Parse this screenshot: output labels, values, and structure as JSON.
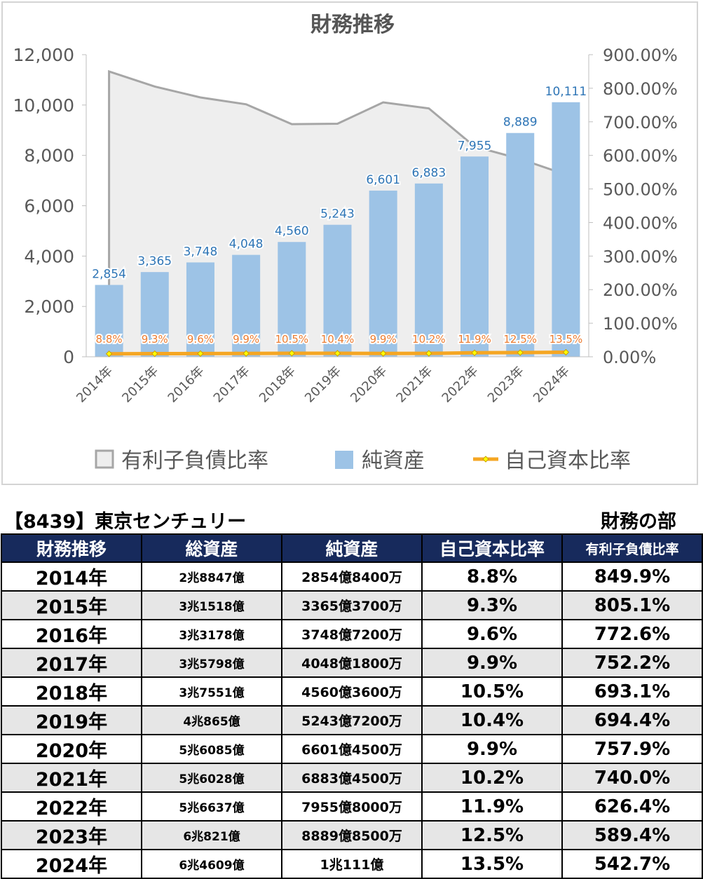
{
  "chart_data": {
    "type": "bar",
    "title": "財務推移",
    "categories": [
      "2014年",
      "2015年",
      "2016年",
      "2017年",
      "2018年",
      "2019年",
      "2020年",
      "2021年",
      "2022年",
      "2023年",
      "2024年"
    ],
    "series": [
      {
        "name": "有利子負債比率",
        "type": "area",
        "axis": "right",
        "color": "#a6a6a6",
        "fill": "#eeeeee",
        "values": [
          849.9,
          805.1,
          772.6,
          752.2,
          693.1,
          694.4,
          757.9,
          740.0,
          626.4,
          589.4,
          542.7
        ]
      },
      {
        "name": "純資産",
        "type": "bar",
        "axis": "left",
        "color": "#9dc3e6",
        "values": [
          2854,
          3365,
          3748,
          4048,
          4560,
          5243,
          6601,
          6883,
          7955,
          8889,
          10111
        ],
        "labels": [
          "2,854",
          "3,365",
          "3,748",
          "4,048",
          "4,560",
          "5,243",
          "6,601",
          "6,883",
          "7,955",
          "8,889",
          "10,111"
        ]
      },
      {
        "name": "自己資本比率",
        "type": "line",
        "axis": "right",
        "color": "#f5a623",
        "values": [
          8.8,
          9.3,
          9.6,
          9.9,
          10.5,
          10.4,
          9.9,
          10.2,
          11.9,
          12.5,
          13.5
        ],
        "labels": [
          "8.8%",
          "9.3%",
          "9.6%",
          "9.9%",
          "10.5%",
          "10.4%",
          "9.9%",
          "10.2%",
          "11.9%",
          "12.5%",
          "13.5%"
        ]
      }
    ],
    "y_left": {
      "min": 0,
      "max": 12000,
      "ticks": [
        "0",
        "2,000",
        "4,000",
        "6,000",
        "8,000",
        "10,000",
        "12,000"
      ]
    },
    "y_right": {
      "min": 0,
      "max": 900,
      "ticks": [
        "0.00%",
        "100.00%",
        "200.00%",
        "300.00%",
        "400.00%",
        "500.00%",
        "600.00%",
        "700.00%",
        "800.00%",
        "900.00%"
      ]
    },
    "legend_position": "bottom",
    "grid": false
  },
  "company_title": "【8439】東京センチュリー",
  "section_label": "財務の部",
  "table": {
    "headers": [
      "財務推移",
      "総資産",
      "純資産",
      "自己資本比率",
      "有利子負債比率"
    ],
    "rows": [
      [
        "2014年",
        "2兆8847億",
        "2854億8400万",
        "8.8%",
        "849.9%"
      ],
      [
        "2015年",
        "3兆1518億",
        "3365億3700万",
        "9.3%",
        "805.1%"
      ],
      [
        "2016年",
        "3兆3178億",
        "3748億7200万",
        "9.6%",
        "772.6%"
      ],
      [
        "2017年",
        "3兆5798億",
        "4048億1800万",
        "9.9%",
        "752.2%"
      ],
      [
        "2018年",
        "3兆7551億",
        "4560億3600万",
        "10.5%",
        "693.1%"
      ],
      [
        "2019年",
        "4兆865億",
        "5243億7200万",
        "10.4%",
        "694.4%"
      ],
      [
        "2020年",
        "5兆6085億",
        "6601億4500万",
        "9.9%",
        "757.9%"
      ],
      [
        "2021年",
        "5兆6028億",
        "6883億4500万",
        "10.2%",
        "740.0%"
      ],
      [
        "2022年",
        "5兆6637億",
        "7955億8000万",
        "11.9%",
        "626.4%"
      ],
      [
        "2023年",
        "6兆821億",
        "8889億8500万",
        "12.5%",
        "589.4%"
      ],
      [
        "2024年",
        "6兆4609億",
        "1兆111億",
        "13.5%",
        "542.7%"
      ]
    ]
  }
}
